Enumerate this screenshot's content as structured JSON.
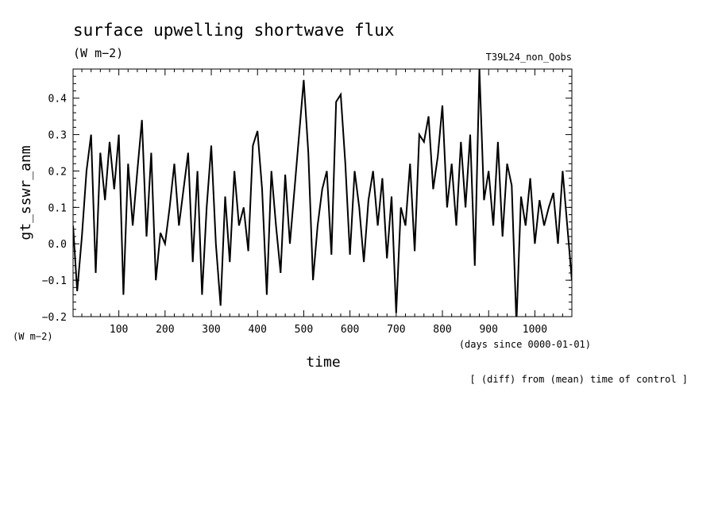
{
  "title": "surface upwelling shortwave flux",
  "units": "(W m−2)",
  "experiment": "T39L24_non_Qobs",
  "ylabel": "gt_sswr_anm",
  "yunits": "(W m−2)",
  "xlabel": "time",
  "xunits": "(days since 0000-01-01)",
  "footnote": "[ (diff) from (mean) time of control ]",
  "chart_data": {
    "type": "line",
    "title": "surface upwelling shortwave flux",
    "xlabel": "time",
    "ylabel": "gt_sswr_anm",
    "xlim": [
      1,
      1080
    ],
    "ylim": [
      -0.2,
      0.48
    ],
    "xticks": [
      100,
      200,
      300,
      400,
      500,
      600,
      700,
      800,
      900,
      1000
    ],
    "yticks": [
      -0.2,
      -0.1,
      0.0,
      0.1,
      0.2,
      0.3,
      0.4
    ],
    "ytick_labels": [
      "−0.2",
      "−0.1",
      "0.0",
      "0.1",
      "0.2",
      "0.3",
      "0.4"
    ],
    "color": "#000000",
    "series": [
      {
        "x": [
          1,
          10,
          20,
          30,
          40,
          50,
          60,
          70,
          80,
          90,
          100,
          110,
          120,
          130,
          140,
          150,
          160,
          170,
          180,
          190,
          200,
          210,
          220,
          230,
          240,
          250,
          260,
          270,
          280,
          290,
          300,
          310,
          320,
          330,
          340,
          350,
          360,
          370,
          380,
          390,
          400,
          410,
          420,
          430,
          440,
          450,
          460,
          470,
          480,
          490,
          500,
          510,
          520,
          530,
          540,
          550,
          560,
          570,
          580,
          590,
          600,
          610,
          620,
          630,
          640,
          650,
          660,
          670,
          680,
          690,
          700,
          710,
          720,
          730,
          740,
          750,
          760,
          770,
          780,
          790,
          800,
          810,
          820,
          830,
          840,
          850,
          860,
          870,
          880,
          890,
          900,
          910,
          920,
          930,
          940,
          950,
          960,
          970,
          980,
          990,
          1000,
          1010,
          1020,
          1030,
          1040,
          1050,
          1060,
          1070,
          1080
        ],
        "values": [
          0.05,
          -0.13,
          0.02,
          0.2,
          0.3,
          -0.08,
          0.25,
          0.12,
          0.28,
          0.15,
          0.3,
          -0.14,
          0.22,
          0.05,
          0.2,
          0.34,
          0.02,
          0.25,
          -0.1,
          0.03,
          0.0,
          0.1,
          0.22,
          0.05,
          0.15,
          0.25,
          -0.05,
          0.2,
          -0.14,
          0.1,
          0.27,
          0.0,
          -0.17,
          0.13,
          -0.05,
          0.2,
          0.05,
          0.1,
          -0.02,
          0.27,
          0.31,
          0.15,
          -0.14,
          0.2,
          0.05,
          -0.08,
          0.19,
          0.0,
          0.15,
          0.3,
          0.45,
          0.25,
          -0.1,
          0.05,
          0.15,
          0.2,
          -0.03,
          0.39,
          0.41,
          0.22,
          -0.03,
          0.2,
          0.1,
          -0.05,
          0.12,
          0.2,
          0.05,
          0.18,
          -0.04,
          0.13,
          -0.19,
          0.1,
          0.05,
          0.22,
          -0.02,
          0.3,
          0.28,
          0.35,
          0.15,
          0.24,
          0.38,
          0.1,
          0.22,
          0.05,
          0.28,
          0.1,
          0.3,
          -0.06,
          0.48,
          0.12,
          0.2,
          0.05,
          0.28,
          0.02,
          0.22,
          0.16,
          -0.22,
          0.13,
          0.05,
          0.18,
          0.0,
          0.12,
          0.05,
          0.1,
          0.14,
          0.0,
          0.2,
          0.05,
          -0.1
        ]
      }
    ]
  }
}
